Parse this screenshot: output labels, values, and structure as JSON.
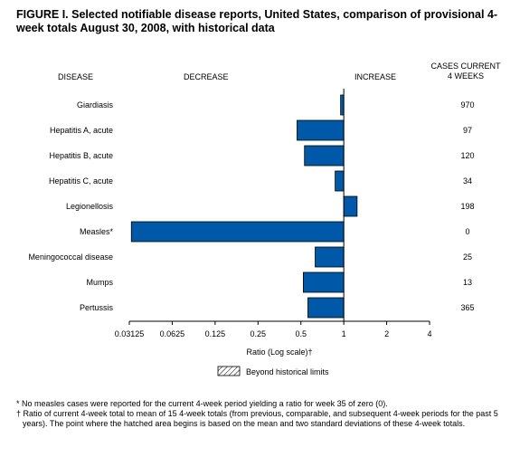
{
  "title": "FIGURE I. Selected notifiable disease reports, United States, comparison of provisional 4-week totals August 30, 2008, with historical data",
  "headers": {
    "disease": "DISEASE",
    "decrease": "DECREASE",
    "increase": "INCREASE",
    "cases_line1": "CASES CURRENT",
    "cases_line2": "4 WEEKS"
  },
  "chart_data": {
    "type": "bar",
    "orientation": "horizontal",
    "xscale": "log2",
    "xlim": [
      0.03125,
      4
    ],
    "baseline": 1,
    "categories": [
      "Giardiasis",
      "Hepatitis A, acute",
      "Hepatitis B, acute",
      "Hepatitis C, acute",
      "Legionellosis",
      "Measles*",
      "Meningococcal disease",
      "Mumps",
      "Pertussis"
    ],
    "values": [
      0.95,
      0.47,
      0.53,
      0.87,
      1.24,
      0.0323,
      0.63,
      0.52,
      0.56
    ],
    "cases": [
      "970",
      "97",
      "120",
      "34",
      "198",
      "0",
      "25",
      "13",
      "365"
    ],
    "xticks": [
      "0.03125",
      "0.0625",
      "0.125",
      "0.25",
      "0.5",
      "1",
      "2",
      "4"
    ],
    "xtick_values": [
      0.03125,
      0.0625,
      0.125,
      0.25,
      0.5,
      1,
      2,
      4
    ],
    "xlabel": "Ratio (Log scale)†",
    "legend": "Beyond historical limits",
    "bar_color": "#0059a8"
  },
  "footnotes": {
    "measles": "* No measles cases were reported for the current 4-week period yielding a ratio for week 35 of zero (0).",
    "ratio": "† Ratio of current 4-week total to mean of 15 4-week totals (from previous, comparable, and subsequent 4-week periods for the past 5 years). The point where the hatched area begins is based on the mean and two standard deviations of these 4-week totals."
  }
}
